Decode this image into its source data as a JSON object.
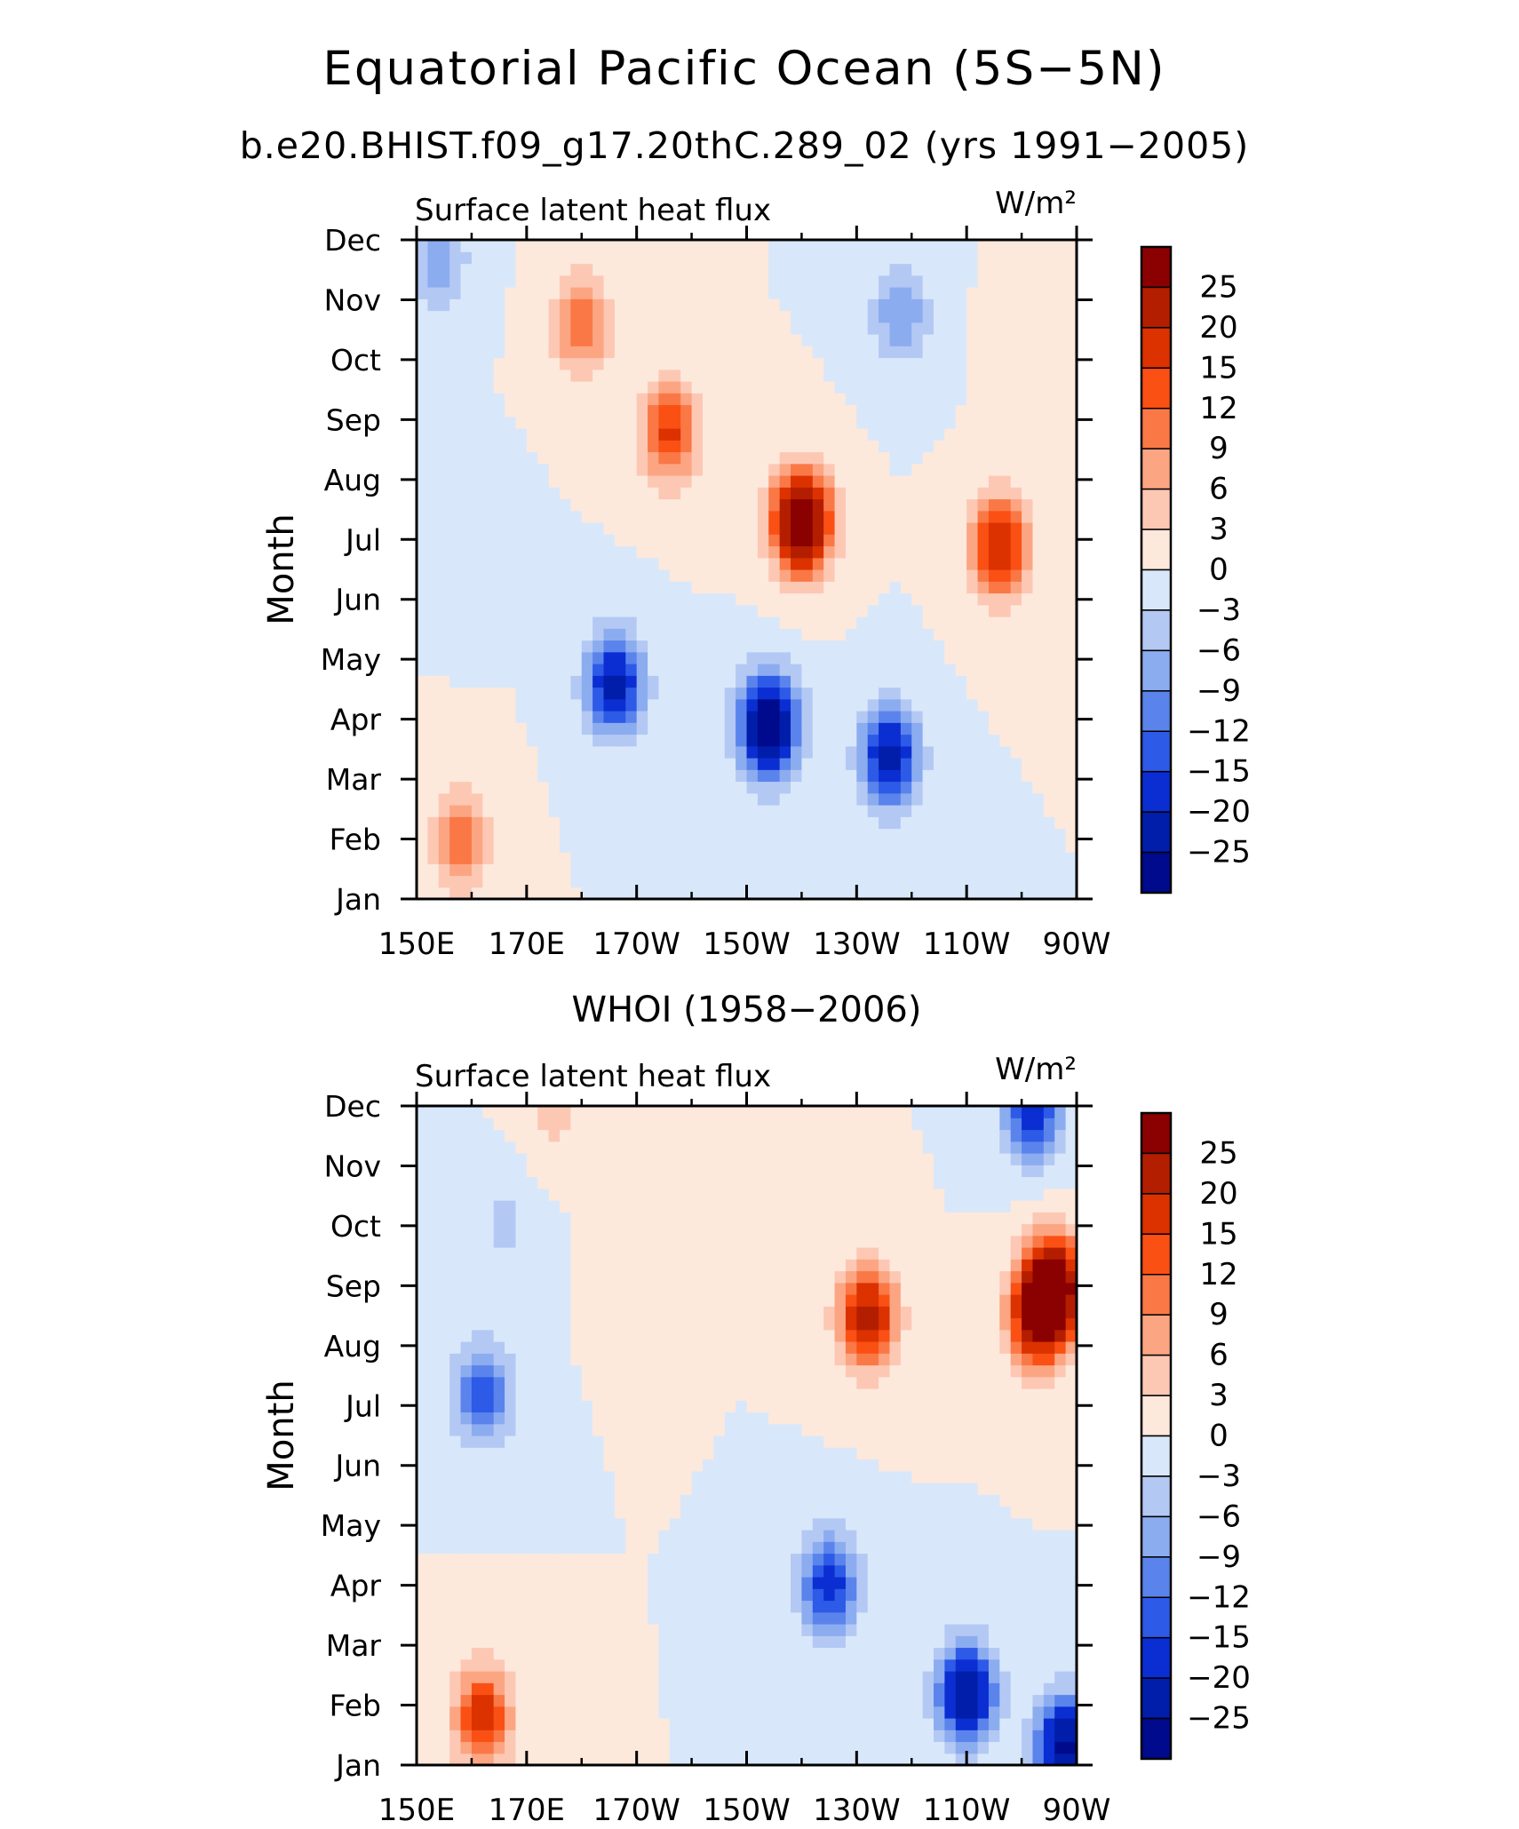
{
  "title": "Equatorial Pacific Ocean (5S−5N)",
  "subtitle": "b.e20.BHIST.f09_g17.20thC.289_02 (yrs 1991−2005)",
  "colorbar_levels": [
    "25",
    "20",
    "15",
    "12",
    "9",
    "6",
    "3",
    "0",
    "−3",
    "−6",
    "−9",
    "−12",
    "−15",
    "−20",
    "−25"
  ],
  "colorbar_colors": [
    "#8b0000",
    "#b41e00",
    "#dc3200",
    "#fa5014",
    "#fa7846",
    "#fca582",
    "#fcc8b4",
    "#fde8dc",
    "#d8e8fa",
    "#b4c8f4",
    "#8cacf0",
    "#5a84ec",
    "#2d5ae6",
    "#0a2ed2",
    "#001eaa",
    "#000a8c"
  ],
  "chart_data": [
    {
      "type": "heatmap",
      "title": "",
      "left_string": "Surface latent heat flux",
      "right_string": "W/m²",
      "ylabel": "Month",
      "xlabel": "",
      "x_ticks": [
        "150E",
        "170E",
        "170W",
        "150W",
        "130W",
        "110W",
        "90W"
      ],
      "x_values": [
        150,
        170,
        190,
        210,
        230,
        250,
        270
      ],
      "xlim": [
        150,
        270
      ],
      "y_ticks": [
        "Jan",
        "Feb",
        "Mar",
        "Apr",
        "May",
        "Jun",
        "Jul",
        "Aug",
        "Sep",
        "Oct",
        "Nov",
        "Dec"
      ],
      "ylim": [
        1,
        12
      ],
      "colorbar_levels": [
        -25,
        -20,
        -15,
        -12,
        -9,
        -6,
        -3,
        0,
        3,
        6,
        9,
        12,
        15,
        20,
        25
      ],
      "centers": [
        {
          "x": 214,
          "y": 3.9,
          "value": -32
        },
        {
          "x": 186,
          "y": 4.6,
          "value": -22
        },
        {
          "x": 236,
          "y": 3.4,
          "value": -22
        },
        {
          "x": 220,
          "y": 7.3,
          "value": 34
        },
        {
          "x": 256,
          "y": 6.9,
          "value": 20
        },
        {
          "x": 196,
          "y": 8.8,
          "value": 16
        },
        {
          "x": 180,
          "y": 10.6,
          "value": 12
        },
        {
          "x": 158,
          "y": 2.0,
          "value": 11
        },
        {
          "x": 238,
          "y": 10.8,
          "value": -9
        },
        {
          "x": 262,
          "y": 10.4,
          "value": 3
        },
        {
          "x": 154,
          "y": 11.7,
          "value": -8
        },
        {
          "x": 160,
          "y": 7.0,
          "value": -2
        }
      ]
    },
    {
      "type": "heatmap",
      "title": "WHOI (1958−2006)",
      "left_string": "Surface latent heat flux",
      "right_string": "W/m²",
      "ylabel": "Month",
      "xlabel": "",
      "x_ticks": [
        "150E",
        "170E",
        "170W",
        "150W",
        "130W",
        "110W",
        "90W"
      ],
      "x_values": [
        150,
        170,
        190,
        210,
        230,
        250,
        270
      ],
      "xlim": [
        150,
        270
      ],
      "y_ticks": [
        "Jan",
        "Feb",
        "Mar",
        "Apr",
        "May",
        "Jun",
        "Jul",
        "Aug",
        "Sep",
        "Oct",
        "Nov",
        "Dec"
      ],
      "ylim": [
        1,
        12
      ],
      "colorbar_levels": [
        -25,
        -20,
        -15,
        -12,
        -9,
        -6,
        -3,
        0,
        3,
        6,
        9,
        12,
        15,
        20,
        25
      ],
      "centers": [
        {
          "x": 232,
          "y": 8.5,
          "value": 22
        },
        {
          "x": 263,
          "y": 8.5,
          "value": 24
        },
        {
          "x": 266,
          "y": 9.0,
          "value": 30
        },
        {
          "x": 162,
          "y": 1.8,
          "value": 18
        },
        {
          "x": 250,
          "y": 2.2,
          "value": -25
        },
        {
          "x": 268,
          "y": 1.3,
          "value": -27
        },
        {
          "x": 225,
          "y": 4.0,
          "value": -18
        },
        {
          "x": 262,
          "y": 11.9,
          "value": -18
        },
        {
          "x": 162,
          "y": 7.2,
          "value": -14
        },
        {
          "x": 166,
          "y": 10.0,
          "value": -4
        },
        {
          "x": 190,
          "y": 9.5,
          "value": 2
        },
        {
          "x": 175,
          "y": 11.9,
          "value": 4
        }
      ]
    }
  ]
}
